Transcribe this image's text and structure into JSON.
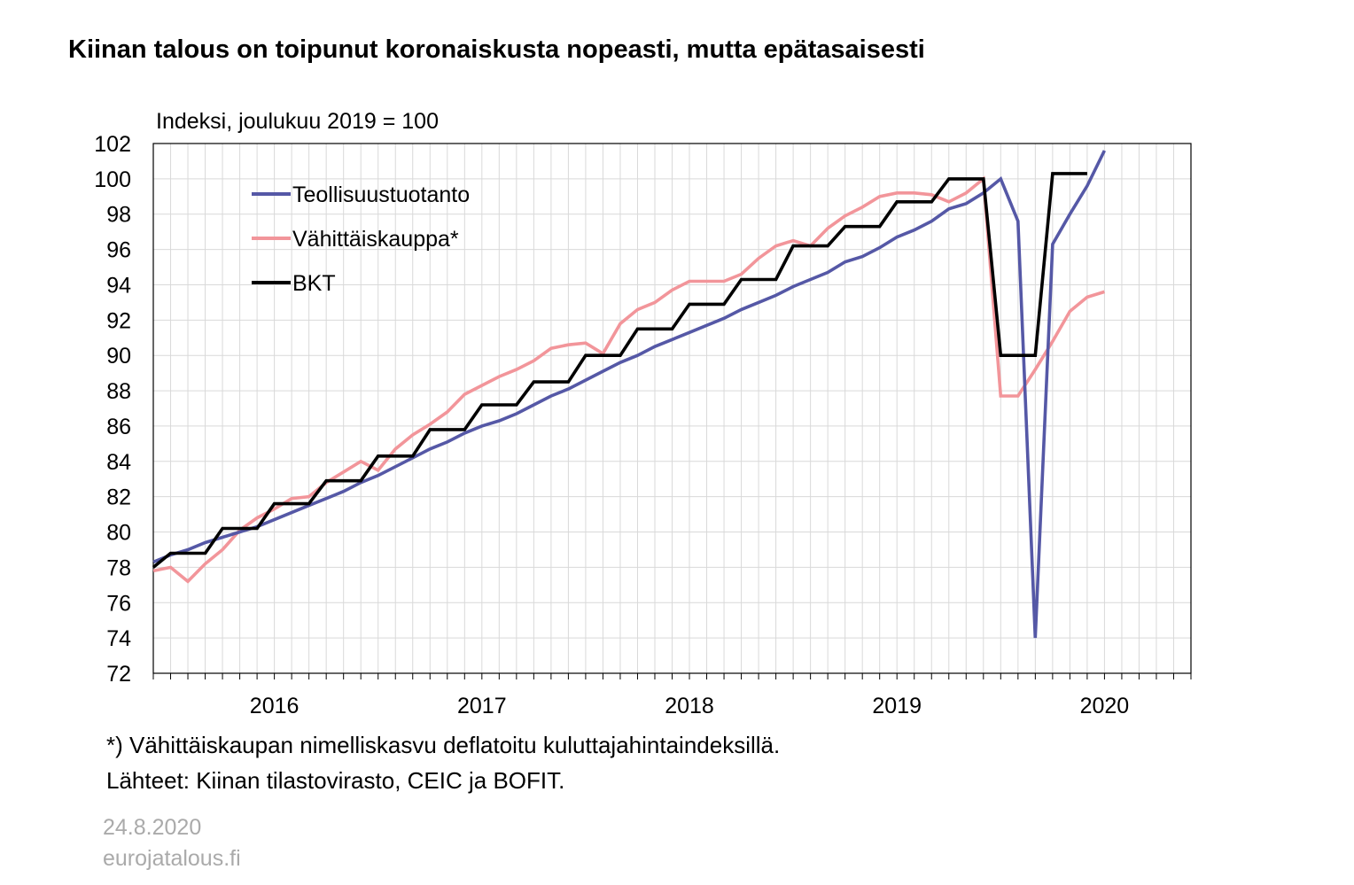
{
  "chart_data": {
    "type": "line",
    "title": "Kiinan talous on toipunut koronaiskusta nopeasti, mutta epätasaisesti",
    "ylabel": "Indeksi, joulukuu 2019 = 100",
    "xlabel": "",
    "ylim": [
      72,
      102
    ],
    "yticks": [
      "72",
      "74",
      "76",
      "78",
      "80",
      "82",
      "84",
      "86",
      "88",
      "90",
      "92",
      "94",
      "96",
      "98",
      "100",
      "102"
    ],
    "x_range": [
      "2015-12",
      "2020-12"
    ],
    "x_labels": [
      "2016",
      "2017",
      "2018",
      "2019",
      "2020"
    ],
    "grid": true,
    "legend_position": "top-left",
    "series": [
      {
        "name": "Teollisuustuotanto",
        "color": "#5558a6",
        "x": [
          "2015-12",
          "2016-01",
          "2016-02",
          "2016-03",
          "2016-04",
          "2016-05",
          "2016-06",
          "2016-07",
          "2016-08",
          "2016-09",
          "2016-10",
          "2016-11",
          "2016-12",
          "2017-01",
          "2017-02",
          "2017-03",
          "2017-04",
          "2017-05",
          "2017-06",
          "2017-07",
          "2017-08",
          "2017-09",
          "2017-10",
          "2017-11",
          "2017-12",
          "2018-01",
          "2018-02",
          "2018-03",
          "2018-04",
          "2018-05",
          "2018-06",
          "2018-07",
          "2018-08",
          "2018-09",
          "2018-10",
          "2018-11",
          "2018-12",
          "2019-01",
          "2019-02",
          "2019-03",
          "2019-04",
          "2019-05",
          "2019-06",
          "2019-07",
          "2019-08",
          "2019-09",
          "2019-10",
          "2019-11",
          "2019-12",
          "2020-01",
          "2020-02",
          "2020-03",
          "2020-04",
          "2020-05",
          "2020-06",
          "2020-07"
        ],
        "values": [
          78.3,
          78.7,
          79.0,
          79.4,
          79.7,
          80.0,
          80.3,
          80.7,
          81.1,
          81.5,
          81.9,
          82.3,
          82.8,
          83.2,
          83.7,
          84.2,
          84.7,
          85.1,
          85.6,
          86.0,
          86.3,
          86.7,
          87.2,
          87.7,
          88.1,
          88.6,
          89.1,
          89.6,
          90.0,
          90.5,
          90.9,
          91.3,
          91.7,
          92.1,
          92.6,
          93.0,
          93.4,
          93.9,
          94.3,
          94.7,
          95.3,
          95.6,
          96.1,
          96.7,
          97.1,
          97.6,
          98.3,
          98.6,
          99.2,
          100.0,
          97.6,
          74.0,
          96.3,
          98.0,
          99.6,
          101.6
        ]
      },
      {
        "name": "Vähittäiskauppa*",
        "color": "#f2959a",
        "x": [
          "2015-12",
          "2016-01",
          "2016-02",
          "2016-03",
          "2016-04",
          "2016-05",
          "2016-06",
          "2016-07",
          "2016-08",
          "2016-09",
          "2016-10",
          "2016-11",
          "2016-12",
          "2017-01",
          "2017-02",
          "2017-03",
          "2017-04",
          "2017-05",
          "2017-06",
          "2017-07",
          "2017-08",
          "2017-09",
          "2017-10",
          "2017-11",
          "2017-12",
          "2018-01",
          "2018-02",
          "2018-03",
          "2018-04",
          "2018-05",
          "2018-06",
          "2018-07",
          "2018-08",
          "2018-09",
          "2018-10",
          "2018-11",
          "2018-12",
          "2019-01",
          "2019-02",
          "2019-03",
          "2019-04",
          "2019-05",
          "2019-06",
          "2019-07",
          "2019-08",
          "2019-09",
          "2019-10",
          "2019-11",
          "2019-12",
          "2020-01",
          "2020-02",
          "2020-03",
          "2020-04",
          "2020-05",
          "2020-06",
          "2020-07"
        ],
        "values": [
          77.8,
          78.0,
          77.2,
          78.2,
          79.0,
          80.1,
          80.8,
          81.3,
          81.9,
          82.0,
          82.8,
          83.4,
          84.0,
          83.5,
          84.7,
          85.5,
          86.1,
          86.8,
          87.8,
          88.3,
          88.8,
          89.2,
          89.7,
          90.4,
          90.6,
          90.7,
          90.1,
          91.8,
          92.6,
          93.0,
          93.7,
          94.2,
          94.2,
          94.2,
          94.6,
          95.5,
          96.2,
          96.5,
          96.2,
          97.2,
          97.9,
          98.4,
          99.0,
          99.2,
          99.2,
          99.1,
          98.7,
          99.2,
          100.0,
          87.7,
          87.7,
          89.2,
          90.8,
          92.5,
          93.3,
          93.6
        ]
      },
      {
        "name": "BKT",
        "color": "#000000",
        "x": [
          "2015-12",
          "2016-01",
          "2016-02",
          "2016-03",
          "2016-04",
          "2016-05",
          "2016-06",
          "2016-07",
          "2016-08",
          "2016-09",
          "2016-10",
          "2016-11",
          "2016-12",
          "2017-01",
          "2017-02",
          "2017-03",
          "2017-04",
          "2017-05",
          "2017-06",
          "2017-07",
          "2017-08",
          "2017-09",
          "2017-10",
          "2017-11",
          "2017-12",
          "2018-01",
          "2018-02",
          "2018-03",
          "2018-04",
          "2018-05",
          "2018-06",
          "2018-07",
          "2018-08",
          "2018-09",
          "2018-10",
          "2018-11",
          "2018-12",
          "2019-01",
          "2019-02",
          "2019-03",
          "2019-04",
          "2019-05",
          "2019-06",
          "2019-07",
          "2019-08",
          "2019-09",
          "2019-10",
          "2019-11",
          "2019-12",
          "2020-01",
          "2020-02",
          "2020-03",
          "2020-04",
          "2020-05",
          "2020-06"
        ],
        "values": [
          78.0,
          78.8,
          78.8,
          78.8,
          80.2,
          80.2,
          80.2,
          81.6,
          81.6,
          81.6,
          82.9,
          82.9,
          82.9,
          84.3,
          84.3,
          84.3,
          85.8,
          85.8,
          85.8,
          87.2,
          87.2,
          87.2,
          88.5,
          88.5,
          88.5,
          90.0,
          90.0,
          90.0,
          91.5,
          91.5,
          91.5,
          92.9,
          92.9,
          92.9,
          94.3,
          94.3,
          94.3,
          96.2,
          96.2,
          96.2,
          97.3,
          97.3,
          97.3,
          98.7,
          98.7,
          98.7,
          100.0,
          100.0,
          100.0,
          90.0,
          90.0,
          90.0,
          100.3,
          100.3,
          100.3
        ]
      }
    ]
  },
  "notes": [
    "*) Vähittäiskaupan nimelliskasvu deflatoitu kuluttajahintaindeksillä.",
    "Lähteet: Kiinan tilastovirasto, CEIC ja BOFIT."
  ],
  "footer": {
    "date": "24.8.2020",
    "site": "eurojatalous.fi"
  }
}
